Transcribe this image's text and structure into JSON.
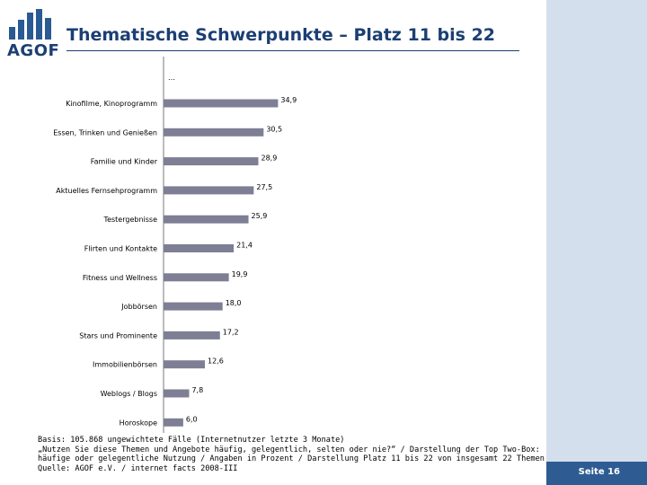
{
  "header": {
    "logo_text": "AGOF",
    "title": "Thematische Schwerpunkte – Platz 11 bis 22"
  },
  "colors": {
    "brand": "#1c3f73",
    "bar": "#7e7f95",
    "side_panel": "#d4dfee",
    "badge": "#2e5c92"
  },
  "chart_data": {
    "type": "bar",
    "orientation": "horizontal",
    "title": "",
    "xlabel": "",
    "ylabel": "",
    "top_marker": "…",
    "xlim": [
      0,
      40
    ],
    "grid": false,
    "legend": "none",
    "categories": [
      "Kinofilme, Kinoprogramm",
      "Essen, Trinken und Genießen",
      "Familie und Kinder",
      "Aktuelles Fernsehprogramm",
      "Testergebnisse",
      "Flirten und Kontakte",
      "Fitness und Wellness",
      "Jobbörsen",
      "Stars und Prominente",
      "Immobilienbörsen",
      "Weblogs / Blogs",
      "Horoskope"
    ],
    "values": [
      34.9,
      30.5,
      28.9,
      27.5,
      25.9,
      21.4,
      19.9,
      18.0,
      17.2,
      12.6,
      7.8,
      6.0
    ],
    "value_labels": [
      "34,9",
      "30,5",
      "28,9",
      "27,5",
      "25,9",
      "21,4",
      "19,9",
      "18,0",
      "17,2",
      "12,6",
      "7,8",
      "6,0"
    ]
  },
  "footnote": {
    "line1": "Basis: 105.868 ungewichtete Fälle (Internetnutzer letzte 3 Monate)",
    "line2": "„Nutzen Sie diese Themen und Angebote häufig, gelegentlich, selten oder nie?“ / Darstellung der Top Two-Box:",
    "line3": "häufige oder gelegentliche Nutzung / Angaben in Prozent / Darstellung Platz 11 bis 22 von insgesamt 22 Themen",
    "line4": "Quelle: AGOF e.V. / internet facts 2008-III"
  },
  "page": {
    "label": "Seite 16"
  }
}
